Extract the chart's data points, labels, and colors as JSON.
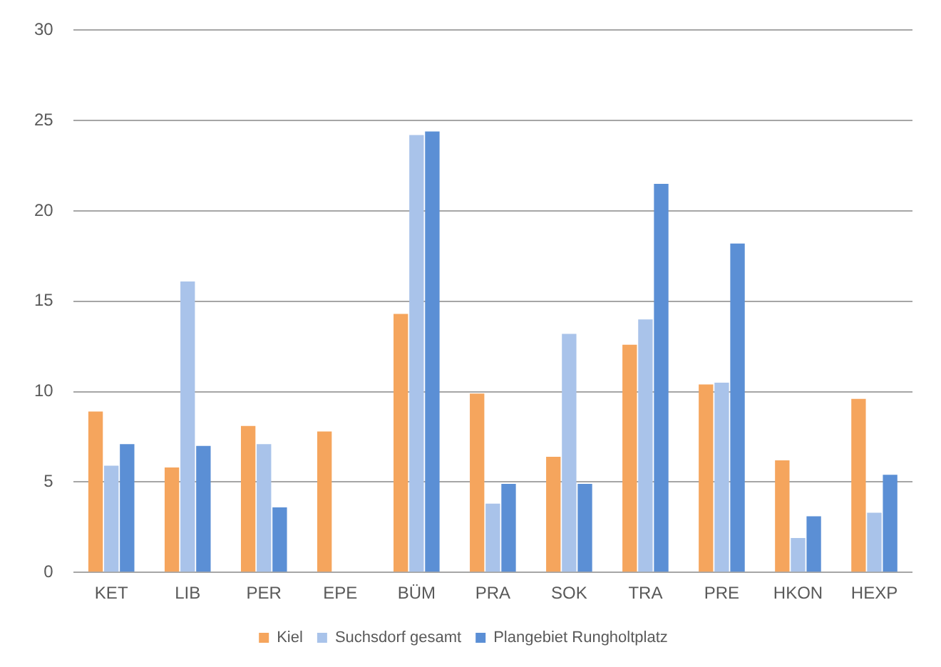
{
  "chart_data": {
    "type": "bar",
    "categories": [
      "KET",
      "LIB",
      "PER",
      "EPE",
      "BÜM",
      "PRA",
      "SOK",
      "TRA",
      "PRE",
      "HKON",
      "HEXP"
    ],
    "series": [
      {
        "name": "Kiel",
        "color": "#f5a55d",
        "values": [
          8.9,
          5.8,
          8.1,
          7.8,
          14.3,
          9.9,
          6.4,
          12.6,
          10.4,
          6.2,
          9.6
        ]
      },
      {
        "name": "Suchsdorf gesamt",
        "color": "#a9c3ea",
        "values": [
          5.9,
          16.1,
          7.1,
          0,
          24.2,
          3.8,
          13.2,
          14.0,
          10.5,
          1.9,
          3.3
        ]
      },
      {
        "name": "Plangebiet Rungholtplatz",
        "color": "#5b8fd5",
        "values": [
          7.1,
          7.0,
          3.6,
          0,
          24.4,
          4.9,
          4.9,
          21.5,
          18.2,
          3.1,
          5.4
        ]
      }
    ],
    "ylim": [
      0,
      30
    ],
    "yticks": [
      0,
      5,
      10,
      15,
      20,
      25,
      30
    ],
    "grid": "y",
    "legend": "bottom"
  }
}
